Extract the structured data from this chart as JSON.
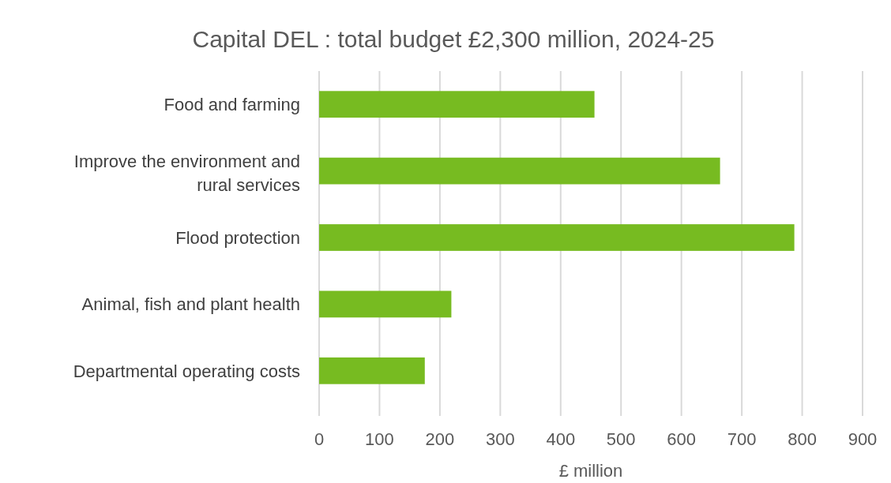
{
  "chart_data": {
    "type": "bar",
    "orientation": "horizontal",
    "title": "Capital DEL : total budget £2,300 million, 2024-25",
    "xlabel": "£ million",
    "categories": [
      "Food and farming",
      "Improve the environment and rural services",
      "Flood protection",
      "Animal, fish and plant health",
      "Departmental operating costs"
    ],
    "values": [
      456,
      664,
      787,
      219,
      175
    ],
    "color": "#77bb21",
    "xlim": [
      0,
      900
    ],
    "xticks": [
      0,
      100,
      200,
      300,
      400,
      500,
      600,
      700,
      800,
      900
    ],
    "grid": "x"
  }
}
